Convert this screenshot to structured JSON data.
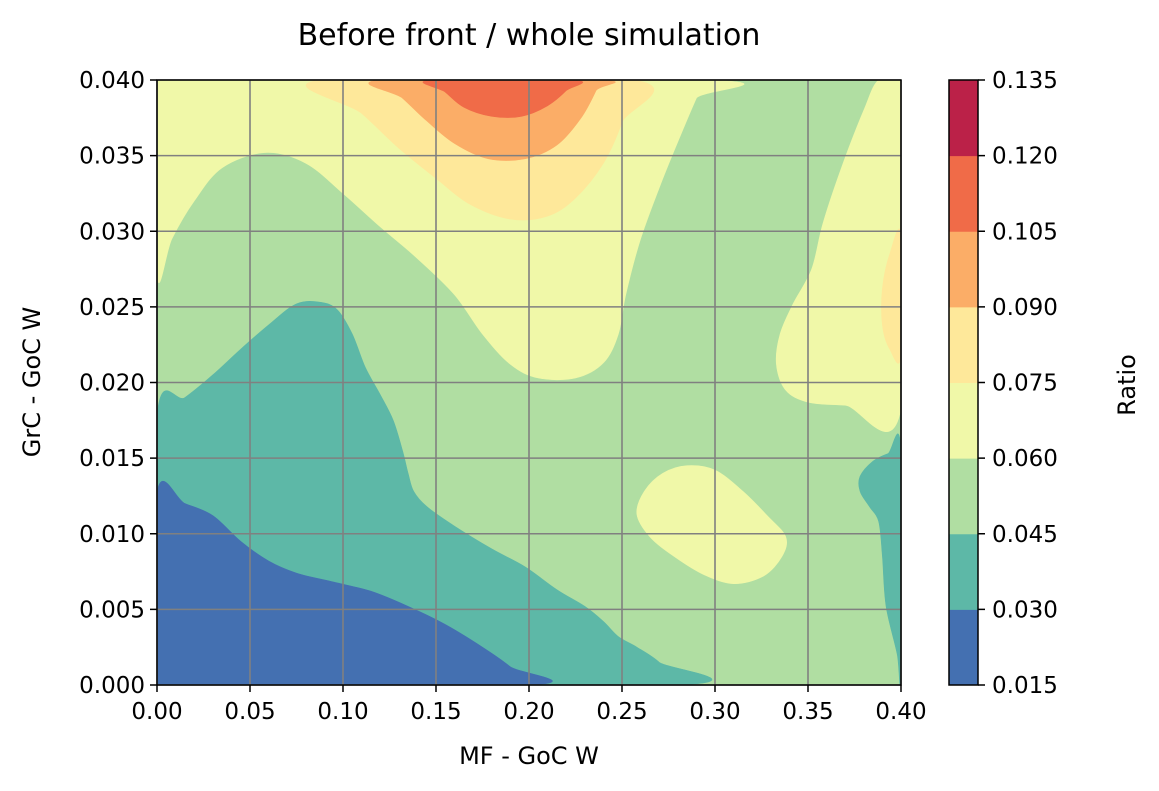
{
  "chart_data": {
    "type": "contour",
    "title": "Before front / whole simulation",
    "xlabel": "MF - GoC W",
    "ylabel": "GrC - GoC W",
    "xlim": [
      0.0,
      0.4
    ],
    "ylim": [
      0.0,
      0.04
    ],
    "xticks": [
      "0.00",
      "0.05",
      "0.10",
      "0.15",
      "0.20",
      "0.25",
      "0.30",
      "0.35",
      "0.40"
    ],
    "yticks": [
      "0.000",
      "0.005",
      "0.010",
      "0.015",
      "0.020",
      "0.025",
      "0.030",
      "0.035",
      "0.040"
    ],
    "grid": true,
    "colorbar": {
      "label": "Ratio",
      "ticks": [
        "0.015",
        "0.030",
        "0.045",
        "0.060",
        "0.075",
        "0.090",
        "0.105",
        "0.120",
        "0.135"
      ],
      "levels": [
        0.015,
        0.03,
        0.045,
        0.06,
        0.075,
        0.09,
        0.105,
        0.12,
        0.135
      ],
      "colors": [
        "#4470b1",
        "#5db8a7",
        "#b0dea2",
        "#f0f8a8",
        "#fee89a",
        "#fbad67",
        "#f06b48",
        "#bb2148"
      ]
    },
    "regions": [
      {
        "band": [
          0.045,
          0.06
        ],
        "color": "#b0dea2",
        "outline": [
          [
            0.0,
            0.0
          ],
          [
            0.4,
            0.0
          ],
          [
            0.4,
            0.04
          ],
          [
            0.0,
            0.04
          ]
        ]
      },
      {
        "band": [
          0.06,
          0.075
        ],
        "color": "#f0f8a8",
        "outline": [
          [
            0.0,
            0.0271
          ],
          [
            0.008,
            0.0295
          ],
          [
            0.02,
            0.032
          ],
          [
            0.035,
            0.0342
          ],
          [
            0.058,
            0.0352
          ],
          [
            0.08,
            0.0345
          ],
          [
            0.1,
            0.0325
          ],
          [
            0.12,
            0.0303
          ],
          [
            0.14,
            0.0282
          ],
          [
            0.16,
            0.0258
          ],
          [
            0.175,
            0.0232
          ],
          [
            0.19,
            0.0212
          ],
          [
            0.205,
            0.0203
          ],
          [
            0.225,
            0.0203
          ],
          [
            0.24,
            0.0213
          ],
          [
            0.248,
            0.0232
          ],
          [
            0.252,
            0.0258
          ],
          [
            0.26,
            0.0295
          ],
          [
            0.272,
            0.0335
          ],
          [
            0.283,
            0.0368
          ],
          [
            0.29,
            0.0388
          ],
          [
            0.295,
            0.04
          ],
          [
            0.0,
            0.04
          ]
        ]
      },
      {
        "band": [
          0.06,
          0.075
        ],
        "color": "#f0f8a8",
        "outline": [
          [
            0.388,
            0.04
          ],
          [
            0.38,
            0.038
          ],
          [
            0.368,
            0.0342
          ],
          [
            0.358,
            0.0305
          ],
          [
            0.352,
            0.0275
          ],
          [
            0.342,
            0.0252
          ],
          [
            0.335,
            0.0232
          ],
          [
            0.333,
            0.0212
          ],
          [
            0.338,
            0.0195
          ],
          [
            0.35,
            0.0187
          ],
          [
            0.37,
            0.0185
          ],
          [
            0.4,
            0.0183
          ],
          [
            0.4,
            0.04
          ]
        ]
      },
      {
        "band": [
          0.06,
          0.075
        ],
        "color": "#f0f8a8",
        "outline": [
          [
            0.258,
            0.0113
          ],
          [
            0.262,
            0.0128
          ],
          [
            0.272,
            0.014
          ],
          [
            0.285,
            0.0145
          ],
          [
            0.3,
            0.0142
          ],
          [
            0.315,
            0.0128
          ],
          [
            0.328,
            0.0112
          ],
          [
            0.338,
            0.0098
          ],
          [
            0.336,
            0.0085
          ],
          [
            0.326,
            0.0072
          ],
          [
            0.31,
            0.0067
          ],
          [
            0.294,
            0.0073
          ],
          [
            0.278,
            0.0085
          ],
          [
            0.265,
            0.0098
          ]
        ]
      },
      {
        "band": [
          0.075,
          0.09
        ],
        "color": "#fee89a",
        "outline": [
          [
            0.088,
            0.04
          ],
          [
            0.11,
            0.0378
          ],
          [
            0.13,
            0.0355
          ],
          [
            0.15,
            0.0335
          ],
          [
            0.168,
            0.0318
          ],
          [
            0.19,
            0.0308
          ],
          [
            0.21,
            0.031
          ],
          [
            0.225,
            0.0322
          ],
          [
            0.24,
            0.0345
          ],
          [
            0.25,
            0.0372
          ],
          [
            0.256,
            0.04
          ]
        ]
      },
      {
        "band": [
          0.075,
          0.09
        ],
        "color": "#fee89a",
        "outline": [
          [
            0.4,
            0.0298
          ],
          [
            0.394,
            0.0285
          ],
          [
            0.39,
            0.0262
          ],
          [
            0.39,
            0.0238
          ],
          [
            0.394,
            0.0222
          ],
          [
            0.4,
            0.0218
          ]
        ]
      },
      {
        "band": [
          0.09,
          0.105
        ],
        "color": "#fbad67",
        "outline": [
          [
            0.12,
            0.04
          ],
          [
            0.132,
            0.0388
          ],
          [
            0.145,
            0.0373
          ],
          [
            0.16,
            0.0358
          ],
          [
            0.178,
            0.0348
          ],
          [
            0.198,
            0.0348
          ],
          [
            0.215,
            0.0357
          ],
          [
            0.228,
            0.0375
          ],
          [
            0.236,
            0.0393
          ],
          [
            0.238,
            0.04
          ]
        ]
      },
      {
        "band": [
          0.105,
          0.12
        ],
        "color": "#f06b48",
        "outline": [
          [
            0.147,
            0.04
          ],
          [
            0.155,
            0.0392
          ],
          [
            0.165,
            0.0382
          ],
          [
            0.18,
            0.0376
          ],
          [
            0.196,
            0.0376
          ],
          [
            0.21,
            0.0383
          ],
          [
            0.22,
            0.0393
          ],
          [
            0.224,
            0.04
          ]
        ]
      },
      {
        "band": [
          0.03,
          0.045
        ],
        "color": "#5db8a7",
        "outline": [
          [
            0.0,
            0.0
          ],
          [
            0.28,
            0.0
          ],
          [
            0.27,
            0.0015
          ],
          [
            0.258,
            0.0025
          ],
          [
            0.248,
            0.0032
          ],
          [
            0.24,
            0.0042
          ],
          [
            0.23,
            0.0052
          ],
          [
            0.215,
            0.0063
          ],
          [
            0.198,
            0.0078
          ],
          [
            0.18,
            0.009
          ],
          [
            0.16,
            0.0105
          ],
          [
            0.145,
            0.0118
          ],
          [
            0.138,
            0.0128
          ],
          [
            0.135,
            0.014
          ],
          [
            0.132,
            0.0155
          ],
          [
            0.127,
            0.0175
          ],
          [
            0.12,
            0.0192
          ],
          [
            0.112,
            0.021
          ],
          [
            0.105,
            0.0232
          ],
          [
            0.097,
            0.0248
          ],
          [
            0.088,
            0.0253
          ],
          [
            0.075,
            0.0252
          ],
          [
            0.06,
            0.0238
          ],
          [
            0.045,
            0.0222
          ],
          [
            0.03,
            0.0205
          ],
          [
            0.015,
            0.019
          ],
          [
            0.0,
            0.0178
          ]
        ]
      },
      {
        "band": [
          0.03,
          0.045
        ],
        "color": "#5db8a7",
        "outline": [
          [
            0.4,
            0.0
          ],
          [
            0.398,
            0.002
          ],
          [
            0.392,
            0.0052
          ],
          [
            0.39,
            0.0085
          ],
          [
            0.388,
            0.0108
          ],
          [
            0.383,
            0.0118
          ],
          [
            0.378,
            0.0128
          ],
          [
            0.378,
            0.0138
          ],
          [
            0.385,
            0.0148
          ],
          [
            0.393,
            0.0153
          ],
          [
            0.4,
            0.0155
          ]
        ]
      },
      {
        "band": [
          0.015,
          0.03
        ],
        "color": "#4470b1",
        "outline": [
          [
            0.0,
            0.0
          ],
          [
            0.2,
            0.0
          ],
          [
            0.19,
            0.0012
          ],
          [
            0.175,
            0.0025
          ],
          [
            0.155,
            0.004
          ],
          [
            0.135,
            0.0052
          ],
          [
            0.115,
            0.0062
          ],
          [
            0.095,
            0.0068
          ],
          [
            0.075,
            0.0074
          ],
          [
            0.06,
            0.0082
          ],
          [
            0.045,
            0.0095
          ],
          [
            0.03,
            0.0112
          ],
          [
            0.015,
            0.012
          ],
          [
            0.0,
            0.0127
          ]
        ]
      }
    ]
  }
}
